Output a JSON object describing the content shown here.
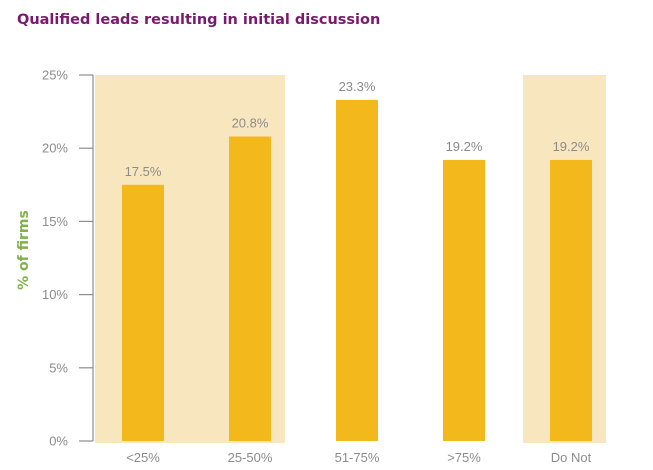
{
  "chart_data": {
    "type": "bar",
    "title": "Qualified leads resulting in initial discussion",
    "ylabel": "% of firms",
    "xlabel": "",
    "categories": [
      "<25%",
      "25-50%",
      "51-75%",
      ">75%",
      "Do Not"
    ],
    "values": [
      17.5,
      20.8,
      23.3,
      19.2,
      19.2
    ],
    "data_labels": [
      "17.5%",
      "20.8%",
      "23.3%",
      "19.2%",
      "19.2%"
    ],
    "ylim": [
      0,
      25
    ],
    "yticks": [
      0,
      5,
      10,
      15,
      20,
      25
    ],
    "ytick_labels": [
      "0%",
      "5%",
      "10%",
      "15%",
      "20%",
      "25%"
    ],
    "highlighted_categories": [
      0,
      1,
      4
    ],
    "grid": false,
    "legend": "none"
  },
  "colors": {
    "bar": "#f3b81c",
    "highlight_band": "#f8e6bf",
    "title": "#7a1a6e",
    "ylabel": "#7fb24a",
    "axis": "#8c8c8c",
    "label_text": "#8c8c8c"
  }
}
